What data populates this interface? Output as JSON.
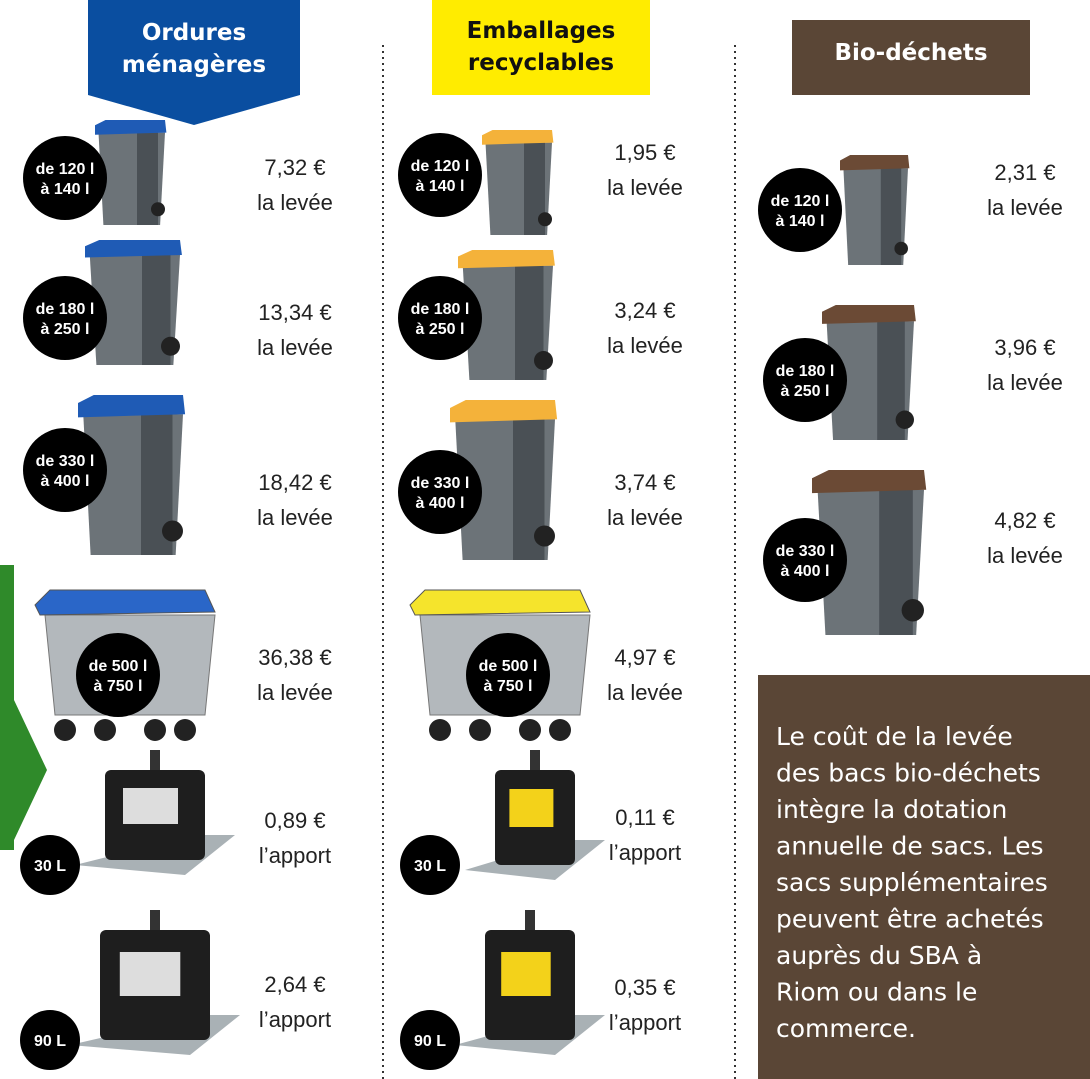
{
  "columns": [
    {
      "title": [
        "Ordures",
        "ménagères"
      ],
      "items": [
        {
          "size": [
            "de 120 l",
            "à 140 l"
          ],
          "price": "7,32 €",
          "unit": "la levée"
        },
        {
          "size": [
            "de 180 l",
            "à 250 l"
          ],
          "price": "13,34 €",
          "unit": "la levée"
        },
        {
          "size": [
            "de 330 l",
            "à 400 l"
          ],
          "price": "18,42 €",
          "unit": "la levée"
        },
        {
          "size": [
            "de 500 l",
            "à 750 l"
          ],
          "price": "36,38 €",
          "unit": "la levée"
        },
        {
          "size": [
            "30 L"
          ],
          "price": "0,89 €",
          "unit": "l’apport"
        },
        {
          "size": [
            "90 L"
          ],
          "price": "2,64 €",
          "unit": "l’apport"
        }
      ]
    },
    {
      "title": [
        "Emballages",
        "recyclables"
      ],
      "items": [
        {
          "size": [
            "de 120 l",
            "à 140 l"
          ],
          "price": "1,95 €",
          "unit": "la levée"
        },
        {
          "size": [
            "de 180 l",
            "à 250 l"
          ],
          "price": "3,24 €",
          "unit": "la levée"
        },
        {
          "size": [
            "de 330 l",
            "à 400 l"
          ],
          "price": "3,74 €",
          "unit": "la levée"
        },
        {
          "size": [
            "de 500 l",
            "à 750 l"
          ],
          "price": "4,97 €",
          "unit": "la levée"
        },
        {
          "size": [
            "30 L"
          ],
          "price": "0,11 €",
          "unit": "l’apport"
        },
        {
          "size": [
            "90 L"
          ],
          "price": "0,35 €",
          "unit": "l’apport"
        }
      ]
    },
    {
      "title": [
        "Bio-déchets"
      ],
      "items": [
        {
          "size": [
            "de 120 l",
            "à 140 l"
          ],
          "price": "2,31 €",
          "unit": "la levée"
        },
        {
          "size": [
            "de 180 l",
            "à 250 l"
          ],
          "price": "3,96 €",
          "unit": "la levée"
        },
        {
          "size": [
            "de 330 l",
            "à 400 l"
          ],
          "price": "4,82 €",
          "unit": "la levée"
        }
      ]
    }
  ],
  "note": [
    "Le coût de la levée",
    "des bacs bio-déchets",
    "intègre la dotation",
    "annuelle de sacs. Les",
    "sacs supplémentaires",
    "peuvent être achetés",
    "auprès du SBA à",
    "Riom ou dans le",
    "commerce."
  ]
}
